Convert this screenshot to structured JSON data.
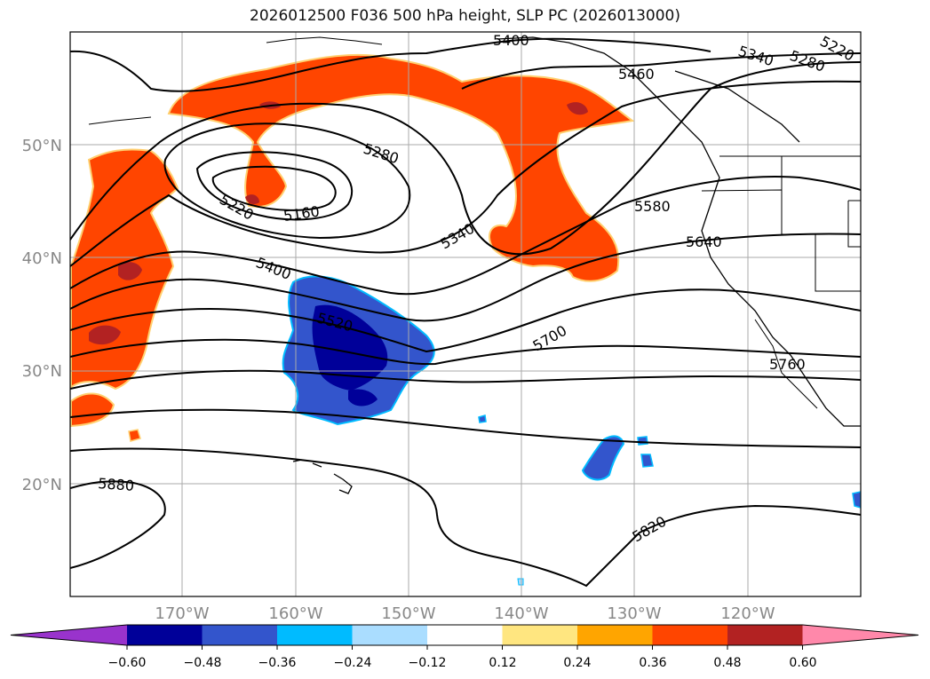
{
  "title": "2026012500 F036 500 hPa height, SLP PC (2026013000)",
  "map": {
    "lat_ticks": [
      "50°N",
      "40°N",
      "30°N",
      "20°N"
    ],
    "lon_ticks": [
      "170°W",
      "160°W",
      "150°W",
      "140°W",
      "130°W",
      "120°W"
    ],
    "contour_labels": [
      "5400",
      "5460",
      "5340",
      "5280",
      "5220",
      "5280",
      "5160",
      "5220",
      "5340",
      "5580",
      "5640",
      "5400",
      "5520",
      "5700",
      "5760",
      "5880",
      "5820"
    ]
  },
  "colorbar": {
    "ticks": [
      "−0.60",
      "−0.48",
      "−0.36",
      "−0.24",
      "−0.12",
      "0.12",
      "0.24",
      "0.36",
      "0.48",
      "0.60"
    ],
    "colors": [
      "#9933cc",
      "#000099",
      "#3355cc",
      "#00bbff",
      "#aaddff",
      "#ffffff",
      "#ffe680",
      "#ffa500",
      "#ff4500",
      "#b22222",
      "#ff88aa"
    ]
  }
}
